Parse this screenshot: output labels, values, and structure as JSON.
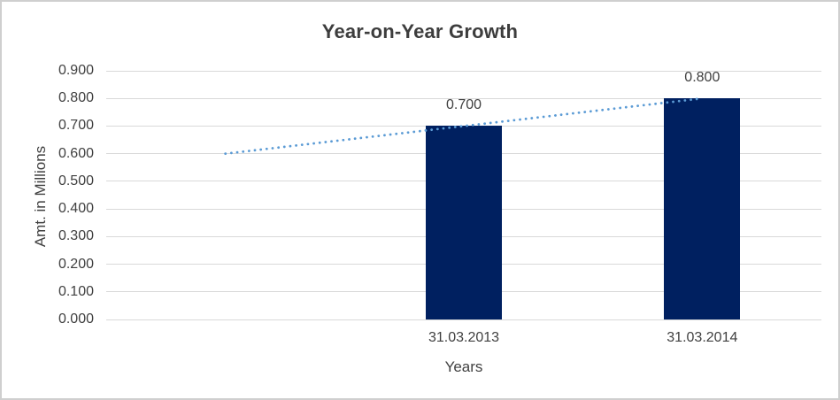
{
  "chart_data": {
    "type": "bar",
    "title": "Year-on-Year Growth",
    "xlabel": "Years",
    "ylabel": "Amt. in Millions",
    "categories": [
      "",
      "31.03.2013",
      "31.03.2014"
    ],
    "series": [
      {
        "name": "Amount bars",
        "type": "bar",
        "values": [
          null,
          0.7,
          0.8
        ],
        "data_labels": [
          "",
          "0.700",
          "0.800"
        ],
        "color": "#002060"
      },
      {
        "name": "Growth trendline",
        "type": "dotted-line",
        "values": [
          0.6,
          0.7,
          0.8
        ],
        "color": "#5B9BD5"
      }
    ],
    "y_ticks": [
      "0.900",
      "0.800",
      "0.700",
      "0.600",
      "0.500",
      "0.400",
      "0.300",
      "0.200",
      "0.100",
      "0.000"
    ],
    "ylim": [
      0,
      0.9
    ],
    "grid": true,
    "gridline_color": "#d9d9d9",
    "text_color": "#404040",
    "legend": "none"
  }
}
